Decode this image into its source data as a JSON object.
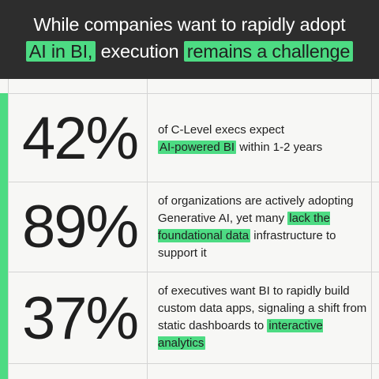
{
  "header": {
    "title_line1": "While companies want to rapidly adopt",
    "title_hl1": "AI in BI,",
    "title_mid": " execution ",
    "title_hl2": "remains a challenge"
  },
  "stats": [
    {
      "value": "42%",
      "text_before": "of C-Level execs expect",
      "highlight": "AI-powered BI",
      "text_after": " within 1-2 years"
    },
    {
      "value": "89%",
      "text_before": "of organizations are actively adopting Generative AI, yet many",
      "highlight": "lack the foundational data",
      "text_after": " infrastructure to support it"
    },
    {
      "value": "37%",
      "text_before": "of executives want BI to rapidly build custom data apps, signaling a shift from static dashboards to",
      "highlight": "interactive analytics",
      "text_after": ""
    }
  ],
  "colors": {
    "accent": "#4ddb83",
    "header_bg": "#2d2d2d",
    "page_bg": "#f7f7f5"
  }
}
